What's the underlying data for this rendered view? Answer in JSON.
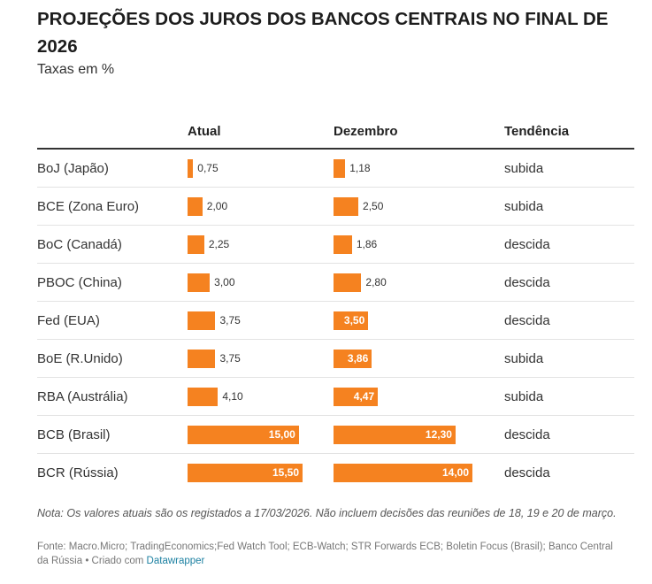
{
  "title": "PROJEÇÕES DOS JUROS DOS BANCOS CENTRAIS NO FINAL DE 2026",
  "subtitle": "Taxas em %",
  "columns": {
    "label": "",
    "atual": "Atual",
    "dezembro": "Dezembro",
    "tendencia": "Tendência"
  },
  "bar_color": "#f58220",
  "chart_data": {
    "type": "table",
    "title": "PROJEÇÕES DOS JUROS DOS BANCOS CENTRAIS NO FINAL DE 2026",
    "subtitle": "Taxas em %",
    "rows": [
      {
        "name": "BoJ (Japão)",
        "atual": 0.75,
        "atual_label": "0,75",
        "dezembro": 1.18,
        "dezembro_label": "1,18",
        "tendencia": "subida"
      },
      {
        "name": "BCE (Zona Euro)",
        "atual": 2.0,
        "atual_label": "2,00",
        "dezembro": 2.5,
        "dezembro_label": "2,50",
        "tendencia": "subida"
      },
      {
        "name": "BoC (Canadá)",
        "atual": 2.25,
        "atual_label": "2,25",
        "dezembro": 1.86,
        "dezembro_label": "1,86",
        "tendencia": "descida"
      },
      {
        "name": "PBOC (China)",
        "atual": 3.0,
        "atual_label": "3,00",
        "dezembro": 2.8,
        "dezembro_label": "2,80",
        "tendencia": "descida"
      },
      {
        "name": "Fed (EUA)",
        "atual": 3.75,
        "atual_label": "3,75",
        "dezembro": 3.5,
        "dezembro_label": "3,50",
        "tendencia": "descida"
      },
      {
        "name": "BoE (R.Unido)",
        "atual": 3.75,
        "atual_label": "3,75",
        "dezembro": 3.86,
        "dezembro_label": "3,86",
        "tendencia": "subida"
      },
      {
        "name": "RBA (Austrália)",
        "atual": 4.1,
        "atual_label": "4,10",
        "dezembro": 4.47,
        "dezembro_label": "4,47",
        "tendencia": "subida"
      },
      {
        "name": "BCB (Brasil)",
        "atual": 15.0,
        "atual_label": "15,00",
        "dezembro": 12.3,
        "dezembro_label": "12,30",
        "tendencia": "descida"
      },
      {
        "name": "BCR (Rússia)",
        "atual": 15.5,
        "atual_label": "15,50",
        "dezembro": 14.0,
        "dezembro_label": "14,00",
        "tendencia": "descida"
      }
    ]
  },
  "note": "Nota: Os valores atuais são os registados a 17/03/2026. Não incluem decisões das reuniões de 18, 19 e 20 de março.",
  "source": "Fonte: Macro.Micro; TradingEconomics;Fed Watch Tool; ECB-Watch; STR Forwards ECB; Boletin Focus (Brasil); Banco Central da Rússia • Criado com ",
  "source_link": "Datawrapper"
}
